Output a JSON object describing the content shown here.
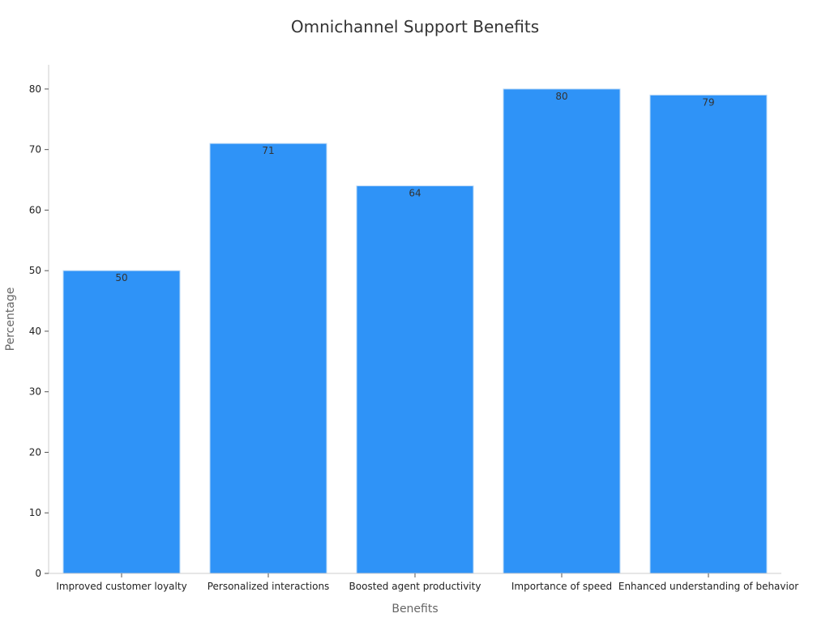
{
  "chart_data": {
    "type": "bar",
    "title": "Omnichannel Support Benefits",
    "xlabel": "Benefits",
    "ylabel": "Percentage",
    "categories": [
      "Improved customer loyalty",
      "Personalized interactions",
      "Boosted agent productivity",
      "Importance of speed",
      "Enhanced understanding of behavior"
    ],
    "values": [
      50,
      71,
      64,
      80,
      79
    ],
    "ylim": [
      0,
      84
    ],
    "yticks": [
      0,
      10,
      20,
      30,
      40,
      50,
      60,
      70,
      80
    ],
    "bar_color": "#2f93f7",
    "grid": false,
    "legend": "none"
  }
}
